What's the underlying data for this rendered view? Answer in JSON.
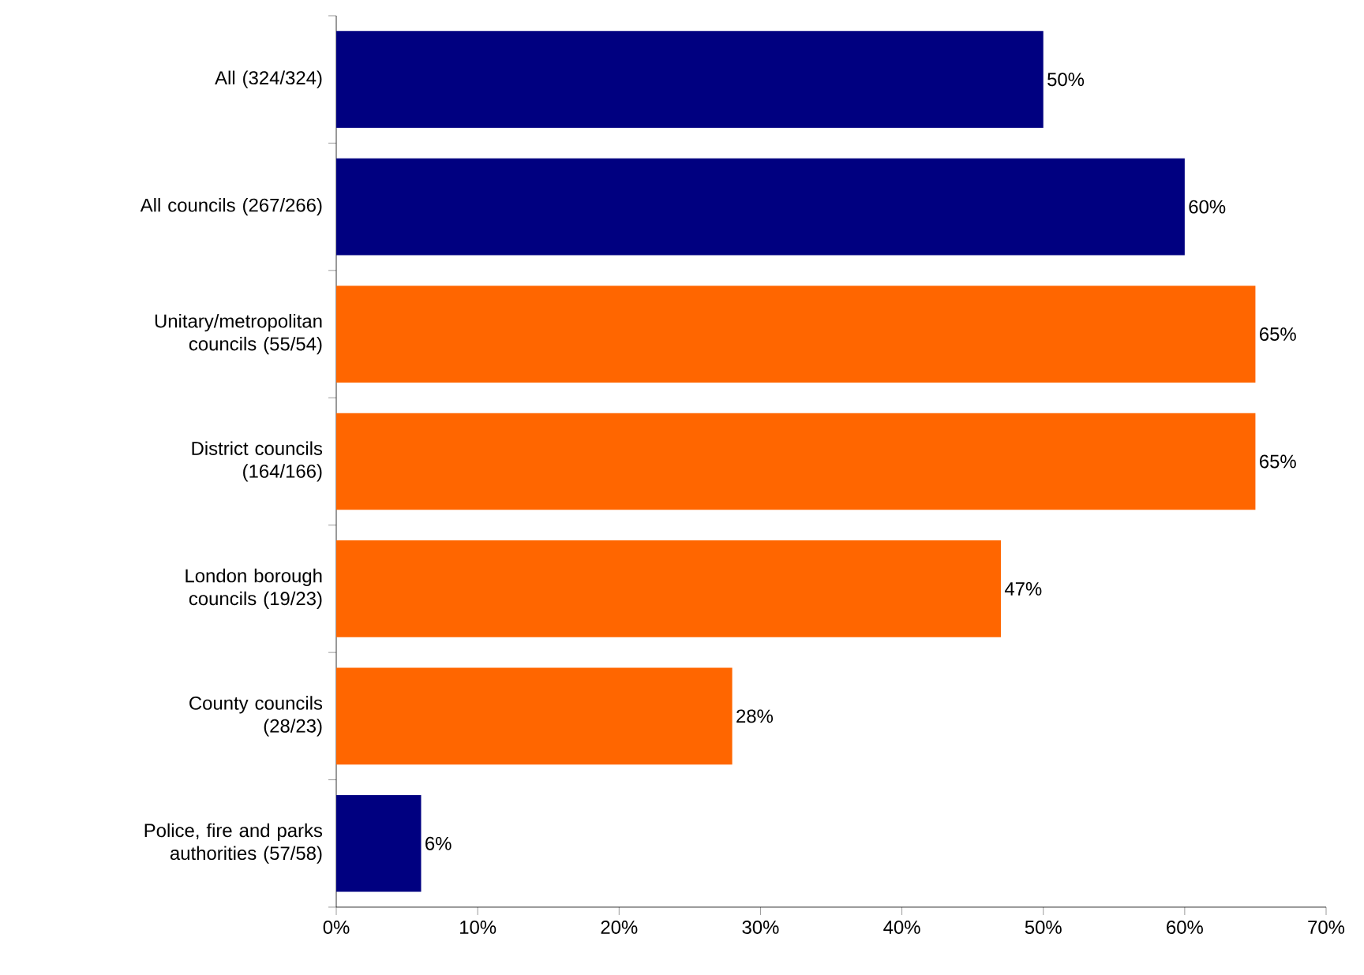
{
  "chart_data": {
    "type": "bar",
    "orientation": "horizontal",
    "categories": [
      "All (324/324)",
      "All councils (267/266)",
      "Unitary/metropolitan councils (55/54)",
      "District councils (164/166)",
      "London borough councils (19/23)",
      "County councils (28/23)",
      "Police, fire and parks authorities (57/58)"
    ],
    "values": [
      50,
      60,
      65,
      65,
      47,
      28,
      6
    ],
    "colors": [
      "#000080",
      "#000080",
      "#ff6600",
      "#ff6600",
      "#ff6600",
      "#ff6600",
      "#000080"
    ],
    "value_labels": [
      "50%",
      "60%",
      "65%",
      "65%",
      "47%",
      "28%",
      "6%"
    ],
    "xlim": [
      0,
      70
    ],
    "xticks": [
      {
        "value": 0,
        "label": "0%"
      },
      {
        "value": 10,
        "label": "10%"
      },
      {
        "value": 20,
        "label": "20%"
      },
      {
        "value": 30,
        "label": "30%"
      },
      {
        "value": 40,
        "label": "40%"
      },
      {
        "value": 50,
        "label": "50%"
      },
      {
        "value": 60,
        "label": "60%"
      },
      {
        "value": 70,
        "label": "70%"
      }
    ]
  }
}
